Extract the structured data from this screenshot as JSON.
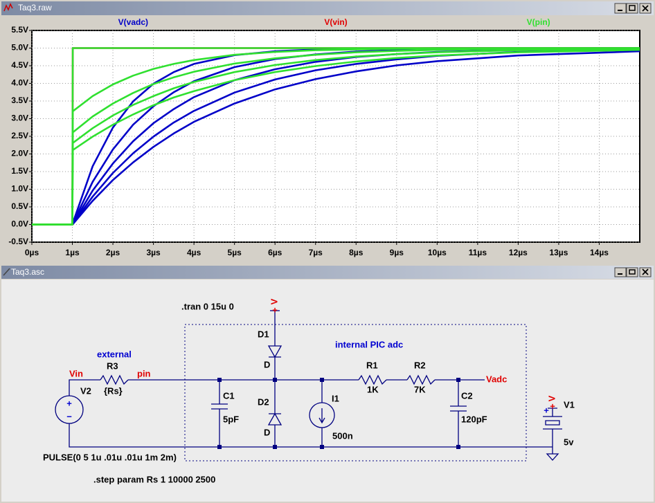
{
  "waveform_window": {
    "title": "Taq3.raw"
  },
  "chart_data": {
    "type": "line",
    "x": [
      0,
      1,
      1.01,
      1.5,
      2,
      2.5,
      3,
      3.5,
      4,
      5,
      6,
      7,
      8,
      9,
      10,
      12,
      15
    ],
    "xlim": [
      0,
      15
    ],
    "xticks": [
      {
        "value": 0,
        "label": "0µs"
      },
      {
        "value": 1,
        "label": "1µs"
      },
      {
        "value": 2,
        "label": "2µs"
      },
      {
        "value": 3,
        "label": "3µs"
      },
      {
        "value": 4,
        "label": "4µs"
      },
      {
        "value": 5,
        "label": "5µs"
      },
      {
        "value": 6,
        "label": "6µs"
      },
      {
        "value": 7,
        "label": "7µs"
      },
      {
        "value": 8,
        "label": "8µs"
      },
      {
        "value": 9,
        "label": "9µs"
      },
      {
        "value": 10,
        "label": "10µs"
      },
      {
        "value": 11,
        "label": "11µs"
      },
      {
        "value": 12,
        "label": "12µs"
      },
      {
        "value": 13,
        "label": "13µs"
      },
      {
        "value": 14,
        "label": "14µs"
      }
    ],
    "ylim": [
      -0.5,
      5.5
    ],
    "yticks": [
      {
        "value": -0.5,
        "label": "-0.5V"
      },
      {
        "value": 0,
        "label": "0.0V"
      },
      {
        "value": 0.5,
        "label": "0.5V"
      },
      {
        "value": 1,
        "label": "1.0V"
      },
      {
        "value": 1.5,
        "label": "1.5V"
      },
      {
        "value": 2,
        "label": "2.0V"
      },
      {
        "value": 2.5,
        "label": "2.5V"
      },
      {
        "value": 3,
        "label": "3.0V"
      },
      {
        "value": 3.5,
        "label": "3.5V"
      },
      {
        "value": 4,
        "label": "4.0V"
      },
      {
        "value": 4.5,
        "label": "4.5V"
      },
      {
        "value": 5,
        "label": "5.0V"
      },
      {
        "value": 5.5,
        "label": "5.5V"
      }
    ],
    "grid": true,
    "series": [
      {
        "name": "V(vadc)",
        "color": "#0000c8",
        "values": [
          [
            0,
            0,
            0.04,
            1.65,
            2.75,
            3.49,
            3.99,
            4.32,
            4.55,
            4.8,
            4.91,
            4.96,
            4.98,
            4.99,
            5,
            5,
            5
          ],
          [
            0,
            0,
            0.03,
            1.21,
            2.13,
            2.83,
            3.35,
            3.75,
            4.06,
            4.46,
            4.69,
            4.82,
            4.9,
            4.94,
            4.97,
            4.99,
            5
          ],
          [
            0,
            0,
            0.02,
            0.96,
            1.73,
            2.36,
            2.87,
            3.27,
            3.61,
            4.09,
            4.4,
            4.61,
            4.75,
            4.83,
            4.89,
            4.95,
            4.99
          ],
          [
            0,
            0,
            0.02,
            0.79,
            1.46,
            2.02,
            2.49,
            2.89,
            3.22,
            3.74,
            4.11,
            4.37,
            4.55,
            4.68,
            4.78,
            4.89,
            4.96
          ],
          [
            0,
            0,
            0.01,
            0.67,
            1.26,
            1.76,
            2.2,
            2.58,
            2.91,
            3.43,
            3.83,
            4.12,
            4.34,
            4.51,
            4.63,
            4.79,
            4.91
          ]
        ]
      },
      {
        "name": "V(vin)",
        "color": "#e00000",
        "values": [
          [
            0,
            0,
            5,
            5,
            5,
            5,
            5,
            5,
            5,
            5,
            5,
            5,
            5,
            5,
            5,
            5,
            5
          ]
        ]
      },
      {
        "name": "V(pin)",
        "color": "#30e030",
        "values": [
          [
            0,
            0,
            5,
            5,
            5,
            5,
            5,
            5,
            5,
            5,
            5,
            5,
            5,
            5,
            5,
            5,
            5
          ],
          [
            0,
            0,
            3.21,
            3.64,
            3.97,
            4.22,
            4.41,
            4.55,
            4.66,
            4.81,
            4.89,
            4.94,
            4.96,
            4.98,
            4.99,
            5,
            5
          ],
          [
            0,
            0,
            2.61,
            3.06,
            3.43,
            3.73,
            3.98,
            4.17,
            4.33,
            4.56,
            4.71,
            4.81,
            4.88,
            4.92,
            4.95,
            4.98,
            5
          ],
          [
            0,
            0,
            2.31,
            2.73,
            3.09,
            3.39,
            3.64,
            3.86,
            4.04,
            4.32,
            4.52,
            4.66,
            4.76,
            4.83,
            4.88,
            4.94,
            4.98
          ],
          [
            0,
            0,
            2.11,
            2.49,
            2.83,
            3.12,
            3.38,
            3.6,
            3.78,
            4.09,
            4.32,
            4.49,
            4.62,
            4.72,
            4.79,
            4.88,
            4.95
          ]
        ]
      }
    ]
  },
  "schematic_window": {
    "title": "Taq3.asc",
    "labels": [
      ".tran 0 15u 0",
      "V",
      "D1",
      "D",
      "D2",
      "D",
      "internal PIC adc",
      "external",
      "Vin",
      "R3",
      "pin",
      "{Rs}",
      "V2",
      "C1",
      "5pF",
      "I1",
      "500n",
      "R1",
      "1K",
      "R2",
      "7K",
      "C2",
      "120pF",
      "Vadc",
      "V",
      "V1",
      "5v",
      "PULSE(0 5 1u .01u .01u 1m 2m)",
      ".step param Rs 1 10000 2500",
      "+",
      "−",
      "+",
      "+",
      "+"
    ]
  }
}
